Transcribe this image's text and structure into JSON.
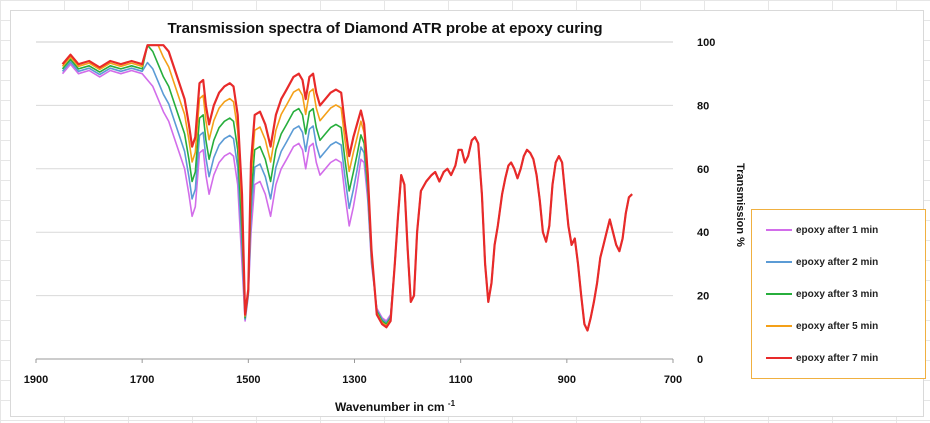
{
  "chart_data": {
    "type": "line",
    "title": "Transmission spectra of Diamond ATR probe at epoxy curing",
    "xlabel": "Wavenumber in cm",
    "xlabel_sup": "-1",
    "ylabel": "Transmission %",
    "xlim": [
      1900,
      700
    ],
    "ylim": [
      0,
      100
    ],
    "xticks": [
      "1900",
      "1700",
      "1500",
      "1300",
      "1100",
      "900",
      "700"
    ],
    "yticks": [
      "0",
      "20",
      "40",
      "60",
      "80",
      "100"
    ],
    "grid": "horizontal",
    "legend_position": "right",
    "series": [
      {
        "name": "epoxy after 1 min",
        "color": "#d26dea",
        "index": 0
      },
      {
        "name": "epoxy after 2 min",
        "color": "#5b9bd5",
        "index": 1
      },
      {
        "name": "epoxy after 3 min",
        "color": "#27ae3c",
        "index": 2
      },
      {
        "name": "epoxy after 5 min",
        "color": "#f4a018",
        "index": 3
      },
      {
        "name": "epoxy after 7 min",
        "color": "#e82a2a",
        "index": 4
      }
    ],
    "base_curve": [
      [
        1850,
        90
      ],
      [
        1835,
        93
      ],
      [
        1820,
        90
      ],
      [
        1800,
        91
      ],
      [
        1780,
        89
      ],
      [
        1760,
        91
      ],
      [
        1740,
        90
      ],
      [
        1720,
        91
      ],
      [
        1700,
        90
      ],
      [
        1690,
        88
      ],
      [
        1680,
        86
      ],
      [
        1670,
        82
      ],
      [
        1660,
        78
      ],
      [
        1650,
        75
      ],
      [
        1640,
        70
      ],
      [
        1630,
        65
      ],
      [
        1620,
        60
      ],
      [
        1612,
        52
      ],
      [
        1606,
        45
      ],
      [
        1600,
        48
      ],
      [
        1592,
        65
      ],
      [
        1585,
        66
      ],
      [
        1580,
        58
      ],
      [
        1574,
        52
      ],
      [
        1565,
        58
      ],
      [
        1555,
        62
      ],
      [
        1545,
        64
      ],
      [
        1535,
        65
      ],
      [
        1528,
        64
      ],
      [
        1520,
        55
      ],
      [
        1512,
        30
      ],
      [
        1506,
        12
      ],
      [
        1500,
        20
      ],
      [
        1495,
        40
      ],
      [
        1488,
        55
      ],
      [
        1478,
        56
      ],
      [
        1468,
        52
      ],
      [
        1458,
        45
      ],
      [
        1448,
        55
      ],
      [
        1438,
        60
      ],
      [
        1428,
        63
      ],
      [
        1415,
        67
      ],
      [
        1405,
        68
      ],
      [
        1398,
        66
      ],
      [
        1392,
        60
      ],
      [
        1385,
        67
      ],
      [
        1378,
        68
      ],
      [
        1372,
        62
      ],
      [
        1365,
        58
      ],
      [
        1355,
        60
      ],
      [
        1345,
        62
      ],
      [
        1335,
        63
      ],
      [
        1325,
        62
      ],
      [
        1318,
        52
      ],
      [
        1310,
        42
      ],
      [
        1302,
        48
      ],
      [
        1295,
        55
      ],
      [
        1288,
        63
      ],
      [
        1282,
        62
      ],
      [
        1275,
        50
      ],
      [
        1268,
        30
      ],
      [
        1258,
        16
      ],
      [
        1248,
        13
      ],
      [
        1240,
        12
      ],
      [
        1232,
        14
      ],
      [
        1224,
        30
      ],
      [
        1218,
        45
      ],
      [
        1212,
        58
      ],
      [
        1206,
        55
      ],
      [
        1200,
        35
      ],
      [
        1194,
        18
      ],
      [
        1188,
        20
      ],
      [
        1182,
        40
      ],
      [
        1175,
        53
      ],
      [
        1165,
        56
      ],
      [
        1155,
        58
      ],
      [
        1148,
        59
      ],
      [
        1140,
        56
      ],
      [
        1132,
        59
      ],
      [
        1125,
        60
      ],
      [
        1118,
        58
      ],
      [
        1110,
        61
      ],
      [
        1104,
        66
      ],
      [
        1098,
        66
      ],
      [
        1092,
        62
      ],
      [
        1086,
        64
      ],
      [
        1079,
        69
      ],
      [
        1073,
        70
      ],
      [
        1067,
        68
      ],
      [
        1060,
        52
      ],
      [
        1054,
        30
      ],
      [
        1048,
        18
      ],
      [
        1042,
        24
      ],
      [
        1036,
        36
      ],
      [
        1030,
        42
      ],
      [
        1022,
        52
      ],
      [
        1016,
        57
      ],
      [
        1010,
        61
      ],
      [
        1005,
        62
      ],
      [
        999,
        60
      ],
      [
        993,
        57
      ],
      [
        987,
        60
      ],
      [
        981,
        64
      ],
      [
        975,
        66
      ],
      [
        969,
        65
      ],
      [
        963,
        63
      ],
      [
        957,
        58
      ],
      [
        951,
        50
      ],
      [
        945,
        40
      ],
      [
        939,
        37
      ],
      [
        933,
        42
      ],
      [
        927,
        55
      ],
      [
        921,
        62
      ],
      [
        915,
        64
      ],
      [
        909,
        62
      ],
      [
        903,
        52
      ],
      [
        897,
        42
      ],
      [
        891,
        36
      ],
      [
        885,
        38
      ],
      [
        879,
        30
      ],
      [
        873,
        20
      ],
      [
        867,
        11
      ],
      [
        861,
        9
      ],
      [
        855,
        13
      ],
      [
        849,
        18
      ],
      [
        843,
        24
      ],
      [
        837,
        32
      ],
      [
        831,
        36
      ],
      [
        825,
        40
      ],
      [
        819,
        44
      ],
      [
        813,
        40
      ],
      [
        807,
        36
      ],
      [
        801,
        34
      ],
      [
        795,
        38
      ],
      [
        789,
        46
      ],
      [
        783,
        51
      ],
      [
        777,
        52
      ]
    ],
    "series_multipliers": [
      0,
      0.25,
      0.5,
      0.78,
      1.0
    ]
  },
  "legend_title_hint": ""
}
